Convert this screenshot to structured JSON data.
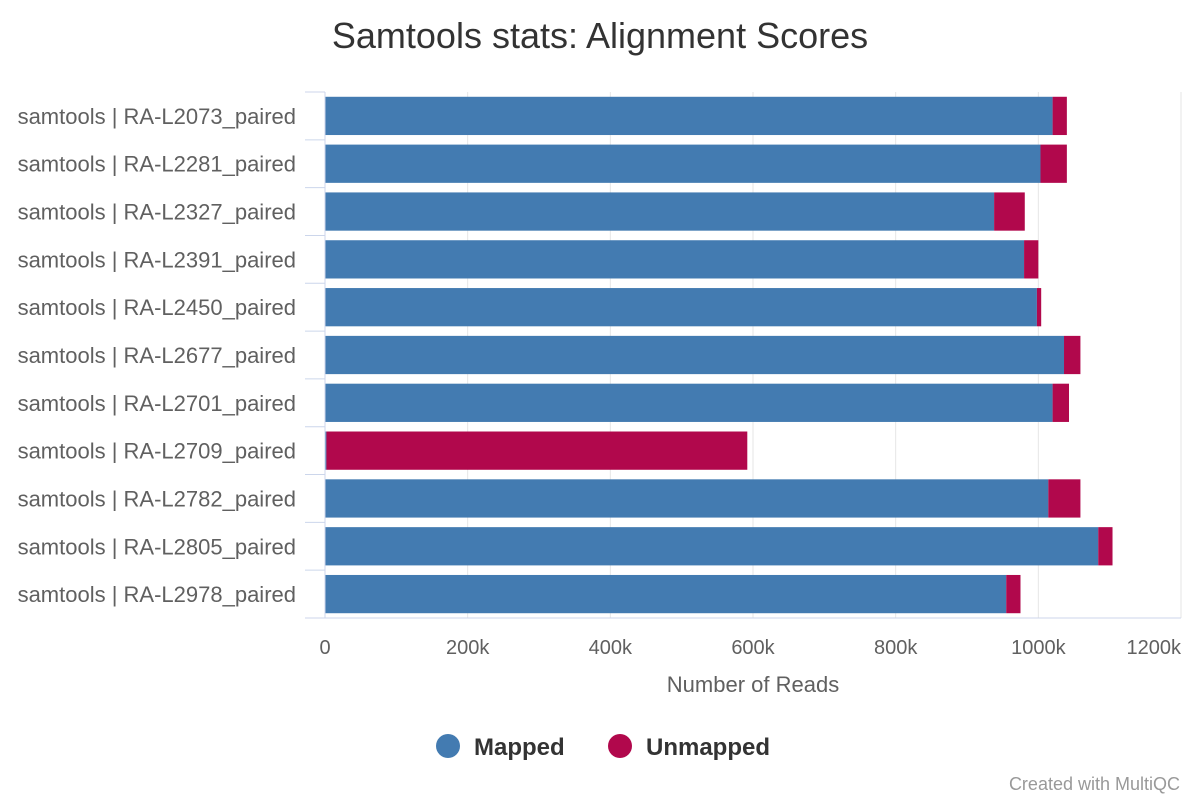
{
  "chart_data": {
    "type": "bar",
    "orientation": "horizontal",
    "stacked": true,
    "title": "Samtools stats: Alignment Scores",
    "xlabel": "Number of Reads",
    "ylabel": "",
    "xlim": [
      0,
      1200000
    ],
    "x_ticks": [
      0,
      200000,
      400000,
      600000,
      800000,
      1000000,
      1200000
    ],
    "x_tick_labels": [
      "0",
      "200k",
      "400k",
      "600k",
      "800k",
      "1000k",
      "1200k"
    ],
    "grid": true,
    "legend_position": "bottom-center",
    "categories": [
      "samtools | RA-L2073_paired",
      "samtools | RA-L2281_paired",
      "samtools | RA-L2327_paired",
      "samtools | RA-L2391_paired",
      "samtools | RA-L2450_paired",
      "samtools | RA-L2677_paired",
      "samtools | RA-L2701_paired",
      "samtools | RA-L2709_paired",
      "samtools | RA-L2782_paired",
      "samtools | RA-L2805_paired",
      "samtools | RA-L2978_paired"
    ],
    "series": [
      {
        "name": "Mapped",
        "color": "#437bb1",
        "values": [
          1020000,
          1003000,
          938000,
          980000,
          998000,
          1036000,
          1020000,
          2000,
          1014000,
          1084000,
          955000
        ]
      },
      {
        "name": "Unmapped",
        "color": "#b1084c",
        "values": [
          20000,
          37000,
          43000,
          20000,
          6000,
          23000,
          23000,
          590000,
          45000,
          20000,
          20000
        ]
      }
    ]
  },
  "credit": "Created with MultiQC"
}
